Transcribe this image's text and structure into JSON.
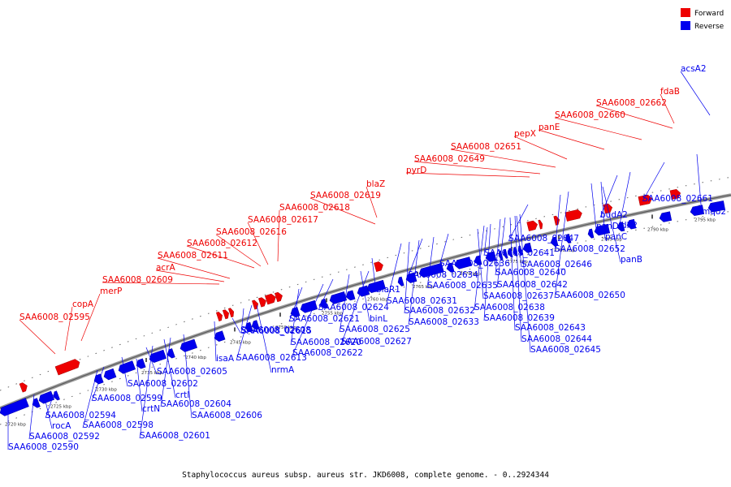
{
  "caption": "Staphylococcus aureus subsp. aureus str. JKD6008, complete genome. - 0..2924344",
  "legend": [
    {
      "label": "Forward",
      "color": "#ee0000"
    },
    {
      "label": "Reverse",
      "color": "#0000ee"
    }
  ],
  "colors": {
    "forward": "#ee0000",
    "reverse": "#0000ee",
    "backbone": "#777777"
  },
  "ticks": [
    "2720 kbp",
    "2725 kbp",
    "2730 kbp",
    "2735 kbp",
    "2740 kbp",
    "2745 kbp",
    "2750 kbp",
    "2755 kbp",
    "2760 kbp",
    "2765 kbp",
    "2770 kbp",
    "2775 kbp",
    "2780 kbp",
    "2785 kbp",
    "2790 kbp",
    "2795 kbp"
  ],
  "forward_labels": [
    "SAA6008_02595",
    "copA",
    "merP",
    "SAA6008_02609",
    "acrA",
    "SAA6008_02611",
    "SAA6008_02612",
    "SAA6008_02616",
    "SAA6008_02617",
    "SAA6008_02618",
    "SAA6008_02619",
    "blaZ",
    "pyrD",
    "SAA6008_02649",
    "SAA6008_02651",
    "pepX",
    "panE",
    "SAA6008_02660",
    "SAA6008_02662",
    "fdaB"
  ],
  "reverse_labels": [
    "acsA2",
    "SAA6008_02590",
    "SAA6008_02592",
    "rocA",
    "SAA6008_02594",
    "SAA6008_02598",
    "SAA6008_02599",
    "SAA6008_02601",
    "crtN",
    "crtI",
    "SAA6008_02602",
    "SAA6008_02604",
    "SAA6008_02605",
    "SAA6008_02606",
    "isaA",
    "SAA6008_02608",
    "SAA6008_02613",
    "nrmA",
    "SAA6008_02615",
    "SAA6008_02620",
    "SAA6008_02621",
    "SAA6008_02622",
    "SAA6008_02624",
    "SAA6008_02625",
    "binL",
    "blaR1",
    "SAA6008_02627",
    "SAA6008_02631",
    "SAA6008_02632",
    "SAA6008_02633",
    "SAA6008_02634",
    "SAA6008_02635",
    "SAA6008_02636",
    "SAA6008_02637",
    "SAA6008_02638",
    "SAA6008_02639",
    "SAA6008_02640",
    "SAA6008_02641",
    "SAA6008_02642",
    "SAA6008_02643",
    "SAA6008_02644",
    "SAA6008_02645",
    "SAA6008_02646",
    "SAA6008_02647",
    "SAA6008_02650",
    "SAA6008_02652",
    "panD",
    "panC",
    "panB",
    "budA2",
    "ldh2",
    "SAA6008_02661",
    "mqo2"
  ]
}
